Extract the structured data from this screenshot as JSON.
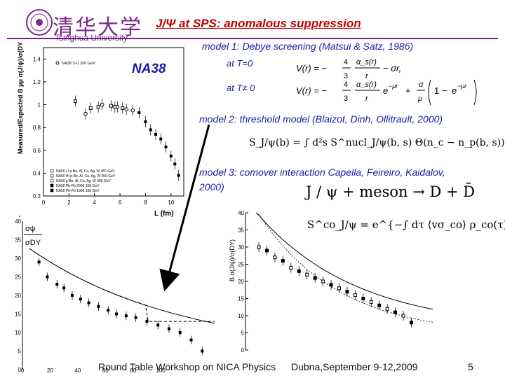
{
  "header": {
    "logo_chars": "清华大学",
    "logo_subtitle": "Tsinghua University",
    "title": "J/Ψ at SPS:  anomalous suppression"
  },
  "experiment_label": "NA38",
  "models": {
    "model1_title": "model 1: Debye screening (Matsui & Satz, 1986)",
    "model1_t0": "at T=0",
    "model1_t": "at T≠ 0",
    "model2_title": "model 2: threshold model (Blaizot, Dinh, Ollitrault, 2000)",
    "model3_title_line1": "model 3: comover interaction Capella, Feireiro, Kaidalov,",
    "model3_title_line2": "2000)"
  },
  "equations": {
    "v_t0_lhs": "V(r) = −",
    "v_t0_rhs": "− σr,",
    "v_t_lhs": "V(r) = −",
    "frac_4": "4",
    "frac_3": "3",
    "alpha_s": "α_s(r)",
    "r": "r",
    "e_mur": "e",
    "mu_r": "−μr",
    "plus": "+",
    "sigma_mu": "σ",
    "mu": "μ",
    "one": "1",
    "minus": "−",
    "threshold": "S_J/ψ(b) = ∫ d²s S^nucl_J/ψ(b, s) Θ(n_c − n_p(b, s)),",
    "reaction": "J / ψ + meson → D + D̄",
    "comover": "S^co_J/ψ = e^{−∫ dτ ⟨vσ_co⟩ ρ_co(τ)},"
  },
  "footer": {
    "workshop": "Round Table Workshop on NICA Physics",
    "location_date": "Dubna,September 9-12,2009",
    "page": "5"
  },
  "plot1": {
    "ylabel": "Measured/Expected B μμ σ(J/ψ)/σ(DY)",
    "xlabel": "L (fm)",
    "legend_top": "NA38 S-U 200 GeV",
    "legend": [
      "NA50 LI p-Be, Al, Cu, Ag, W 450 GeV",
      "NA50 HI p-Be, Al, Cu, Ag, W 450 GeV",
      "NA50 p-Be, Al, Cu, Ag, W 400 GeV",
      "NA50 Pb-Pb 2000 158 GeV",
      "NA50 Pb-Pb 1998 158 GeV"
    ],
    "xticks": [
      "0",
      "2",
      "4",
      "6",
      "8",
      "10"
    ],
    "yticks": [
      "0.2",
      "0.4",
      "0.6",
      "0.8",
      "1",
      "1.2",
      "1.4"
    ]
  },
  "plot2": {
    "ylabel_num": "σψ",
    "ylabel_den": "σDY",
    "yticks": [
      "0",
      "5",
      "10",
      "15",
      "20",
      "25",
      "30",
      "35",
      "40"
    ],
    "xticks": [
      "0",
      "20",
      "40",
      "60",
      "80",
      "100"
    ]
  },
  "plot3": {
    "ylabel": "B σ(J/ψ)/σ(DY)",
    "yticks": [
      "0",
      "5",
      "10",
      "15",
      "20",
      "25",
      "30",
      "35",
      "40"
    ]
  },
  "chart_data": [
    {
      "type": "scatter",
      "title": "",
      "xlabel": "L (fm)",
      "ylabel": "Measured/Expected B μμ σ(J/ψ)/σ(DY)",
      "xlim": [
        0,
        11
      ],
      "ylim": [
        0.2,
        1.5
      ],
      "series": [
        {
          "name": "NA38 S-U 200 GeV",
          "x": [
            3.3,
            4.6,
            5.8,
            6.5,
            7.0
          ],
          "y": [
            0.92,
            1.0,
            0.98,
            0.96,
            0.95
          ]
        },
        {
          "name": "NA50 p-Be, Al, Cu, Ag, W 450 GeV",
          "x": [
            2.5,
            3.7,
            4.3,
            5.3,
            5.6,
            6.2
          ],
          "y": [
            1.03,
            0.97,
            0.98,
            0.99,
            0.98,
            0.97
          ]
        },
        {
          "name": "NA50 Pb-Pb 158 GeV",
          "x": [
            7.5,
            8.0,
            8.4,
            8.8,
            9.2,
            9.6,
            10.0,
            10.3,
            10.6
          ],
          "y": [
            0.93,
            0.85,
            0.78,
            0.74,
            0.7,
            0.63,
            0.55,
            0.48,
            0.38
          ]
        }
      ]
    },
    {
      "type": "scatter",
      "title": "",
      "xlabel": "",
      "ylabel": "σψ / σDY",
      "xlim": [
        0,
        140
      ],
      "ylim": [
        0,
        40
      ],
      "series": [
        {
          "name": "",
          "x": [
            12,
            18,
            25,
            30,
            36,
            42,
            48,
            55,
            62,
            68,
            75,
            82,
            90,
            98,
            106,
            114,
            122,
            130
          ],
          "y": [
            29,
            25,
            23,
            22,
            20,
            19,
            18,
            17,
            16,
            15,
            14.5,
            14,
            13,
            12,
            11,
            10,
            8,
            5
          ]
        }
      ]
    },
    {
      "type": "scatter",
      "title": "",
      "xlabel": "",
      "ylabel": "B σ(J/ψ)/σ(DY)",
      "xlim": [
        0,
        140
      ],
      "ylim": [
        0,
        40
      ],
      "series": [
        {
          "name": "",
          "x": [
            10,
            16,
            22,
            28,
            34,
            40,
            46,
            52,
            58,
            64,
            70,
            76,
            82,
            88,
            94,
            100,
            106,
            112,
            118,
            124
          ],
          "y": [
            30,
            29,
            27,
            26,
            24,
            23,
            22,
            21,
            20,
            19,
            18,
            17,
            16,
            15,
            14,
            13,
            12,
            11,
            10,
            8
          ]
        }
      ]
    }
  ]
}
